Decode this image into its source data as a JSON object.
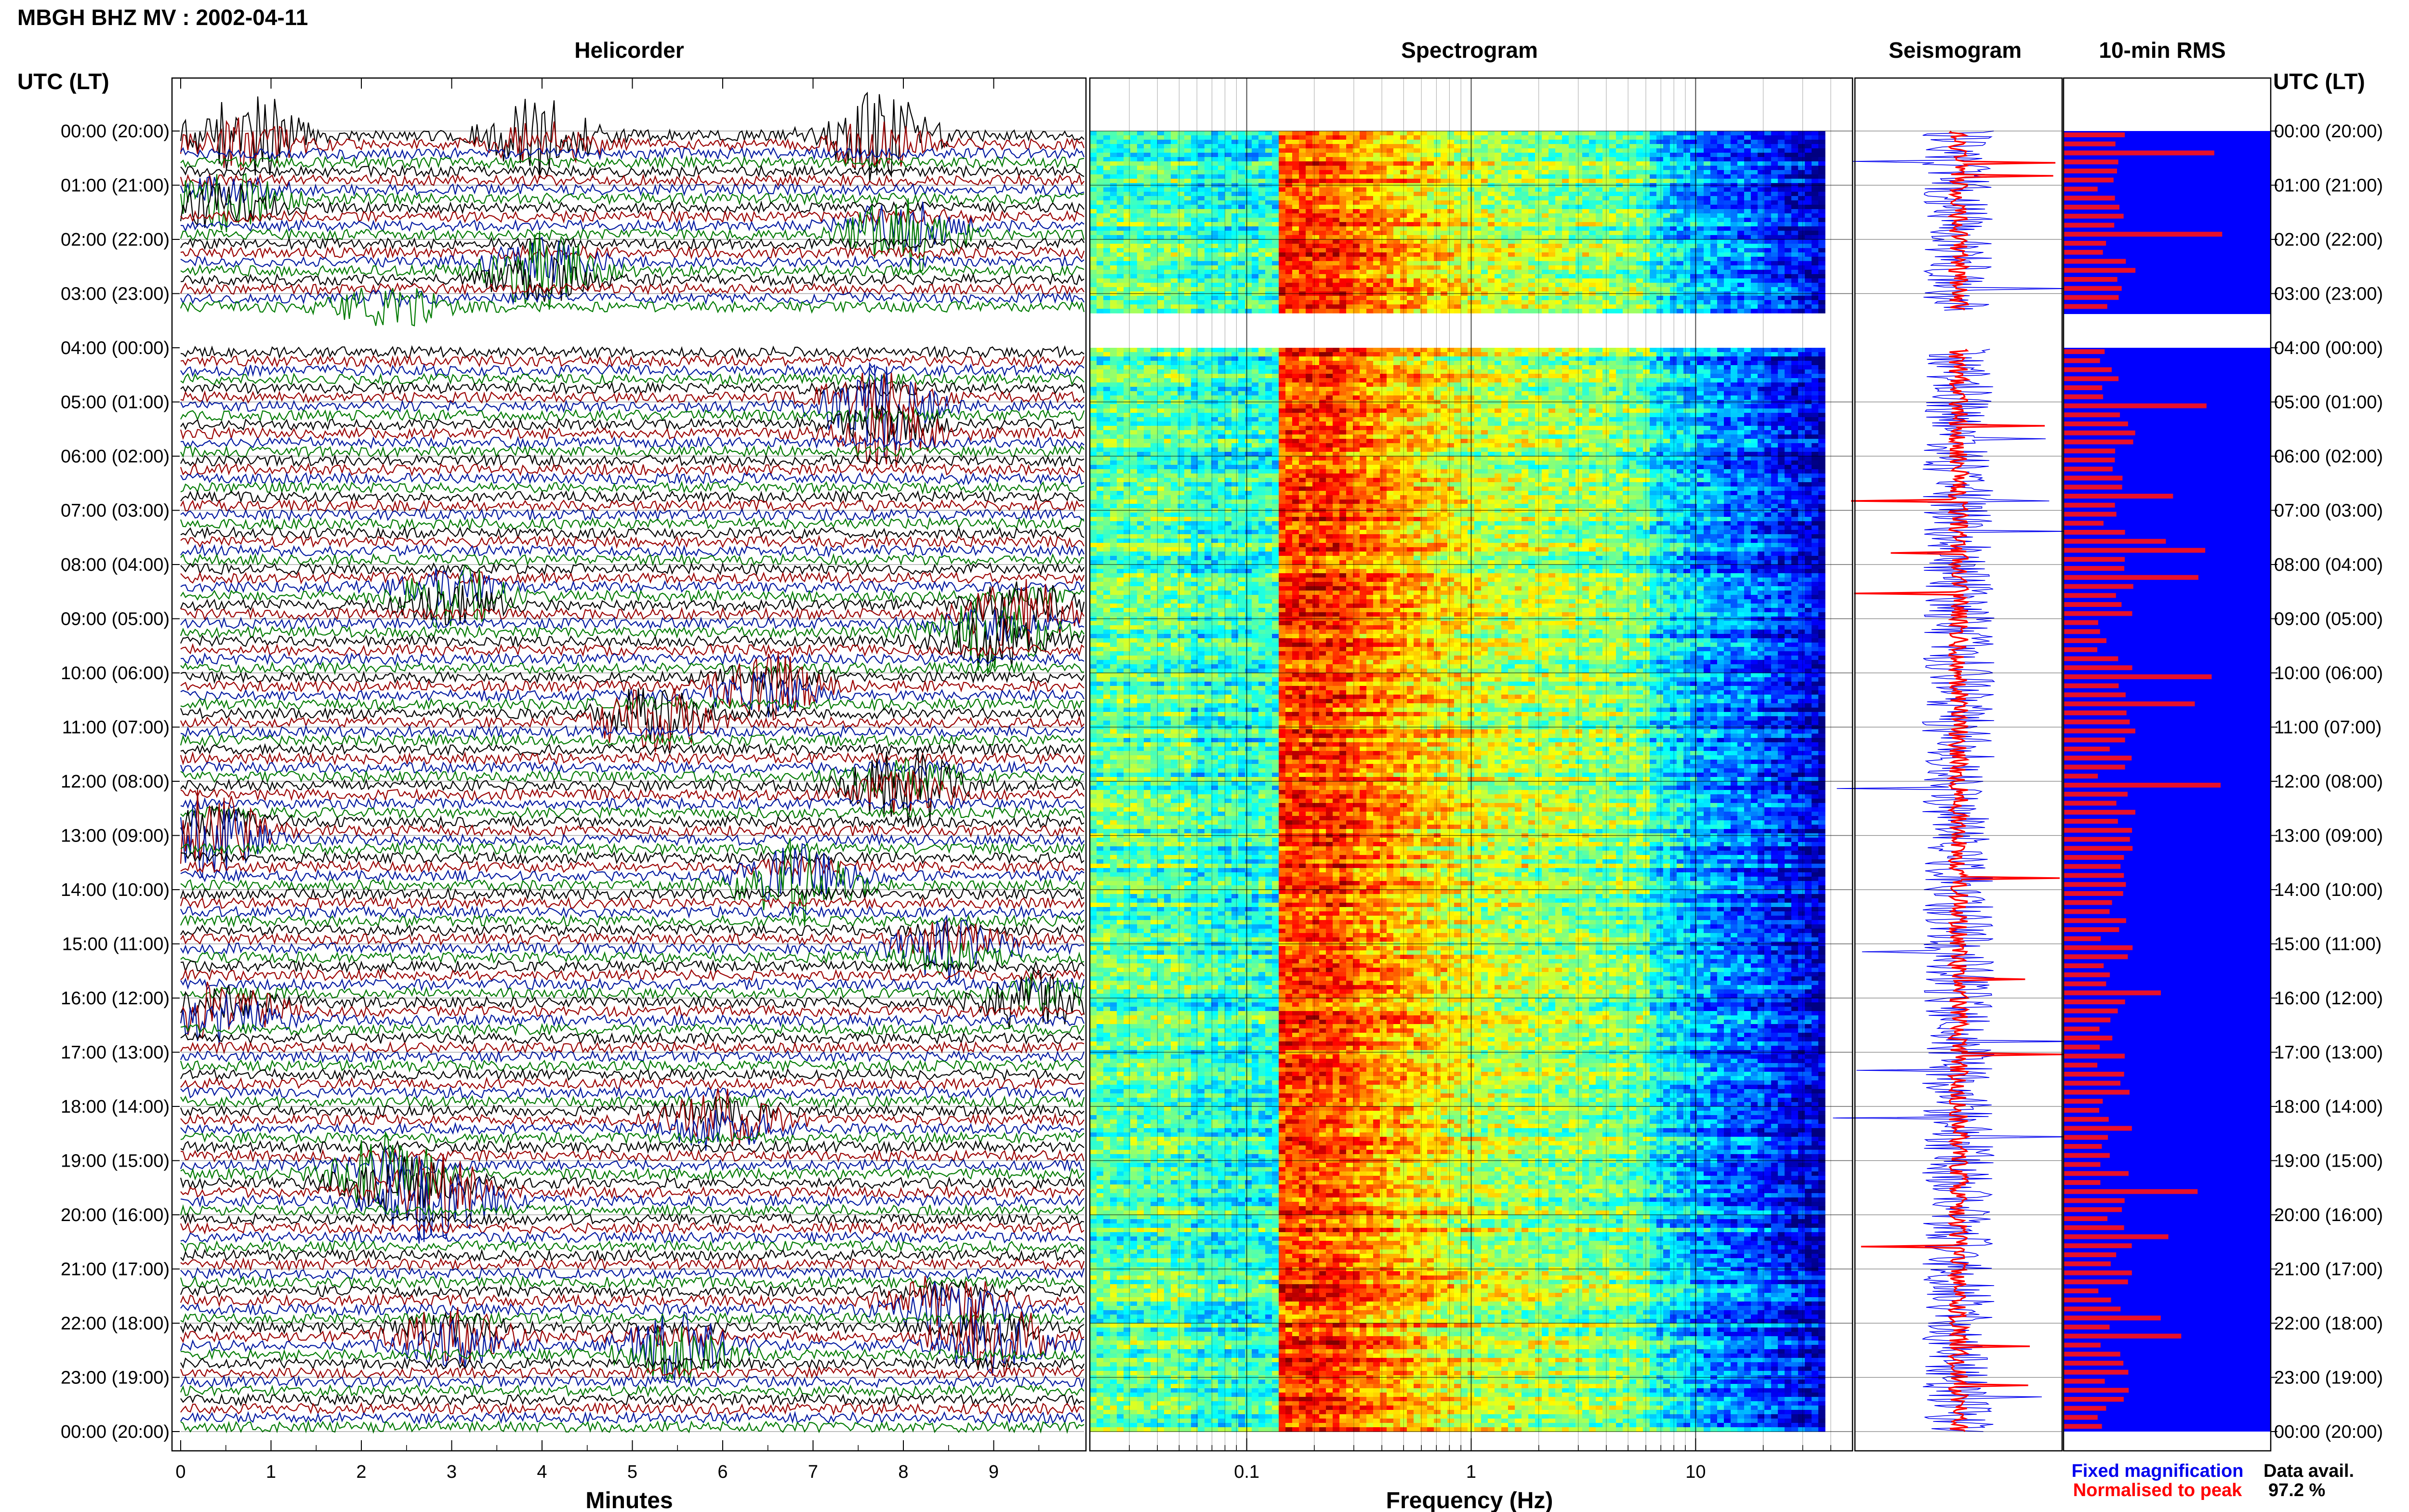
{
  "title": "MBGH BHZ MV : 2002-04-11",
  "panels": {
    "helicorder": "Helicorder",
    "spectrogram": "Spectrogram",
    "seismogram": "Seismogram",
    "rms": "10-min RMS"
  },
  "time_axis_label": "UTC (LT)",
  "time_labels": [
    "00:00 (20:00)",
    "01:00 (21:00)",
    "02:00 (22:00)",
    "03:00 (23:00)",
    "04:00 (00:00)",
    "05:00 (01:00)",
    "06:00 (02:00)",
    "07:00 (03:00)",
    "08:00 (04:00)",
    "09:00 (05:00)",
    "10:00 (06:00)",
    "11:00 (07:00)",
    "12:00 (08:00)",
    "13:00 (09:00)",
    "14:00 (10:00)",
    "15:00 (11:00)",
    "16:00 (12:00)",
    "17:00 (13:00)",
    "18:00 (14:00)",
    "19:00 (15:00)",
    "20:00 (16:00)",
    "21:00 (17:00)",
    "22:00 (18:00)",
    "23:00 (19:00)",
    "00:00 (20:00)"
  ],
  "helicorder_xlabel": "Minutes",
  "minute_ticks": [
    "0",
    "1",
    "2",
    "3",
    "4",
    "5",
    "6",
    "7",
    "8",
    "9"
  ],
  "spectrogram_xlabel": "Frequency (Hz)",
  "frequency_ticks": [
    "0.1",
    "1",
    "10"
  ],
  "legend": {
    "fixed": "Fixed magnification",
    "normalised": "Normalised to peak",
    "fixed_color": "#0000ee",
    "normalised_color": "#ff0000"
  },
  "data_avail": {
    "label": "Data avail.",
    "value": "97.2 %"
  },
  "colors": {
    "trace_cycle": [
      "#000000",
      "#9a0000",
      "#0018a0",
      "#007a00"
    ],
    "rms_fill": "#0000ff",
    "rms_bar": "#e8102a"
  },
  "chart_data": [
    {
      "type": "line",
      "name": "helicorder",
      "x_unit": "minutes",
      "xlim": [
        0,
        10
      ],
      "rows_per_hour": 6,
      "hours": 24,
      "gap_hours": [
        [
          3.333,
          4.0
        ]
      ],
      "events": [
        {
          "hour": 0.0,
          "minute": 0.7,
          "amplitude": 3.0
        },
        {
          "hour": 0.0,
          "minute": 4.0,
          "amplitude": 2.5
        },
        {
          "hour": 0.0,
          "minute": 7.7,
          "amplitude": 2.8
        },
        {
          "hour": 1.2,
          "minute": 0.5,
          "amplitude": 2.0
        },
        {
          "hour": 1.8,
          "minute": 8.0,
          "amplitude": 2.5
        },
        {
          "hour": 2.5,
          "minute": 4.0,
          "amplitude": 2.5
        },
        {
          "hour": 3.3,
          "minute": 2.3,
          "amplitude": 2.0
        },
        {
          "hour": 5.0,
          "minute": 7.7,
          "amplitude": 3.0
        },
        {
          "hour": 5.5,
          "minute": 7.8,
          "amplitude": 2.0
        },
        {
          "hour": 8.5,
          "minute": 3.0,
          "amplitude": 2.0
        },
        {
          "hour": 8.8,
          "minute": 9.3,
          "amplitude": 2.2
        },
        {
          "hour": 9.2,
          "minute": 9.0,
          "amplitude": 2.5
        },
        {
          "hour": 10.2,
          "minute": 6.5,
          "amplitude": 2.0
        },
        {
          "hour": 10.8,
          "minute": 5.2,
          "amplitude": 2.5
        },
        {
          "hour": 12.0,
          "minute": 8.0,
          "amplitude": 2.5
        },
        {
          "hour": 12.9,
          "minute": 0.3,
          "amplitude": 3.0
        },
        {
          "hour": 13.8,
          "minute": 6.8,
          "amplitude": 2.8
        },
        {
          "hour": 15.0,
          "minute": 8.5,
          "amplitude": 2.0
        },
        {
          "hour": 16.0,
          "minute": 9.5,
          "amplitude": 2.2
        },
        {
          "hour": 16.2,
          "minute": 0.5,
          "amplitude": 2.2
        },
        {
          "hour": 18.2,
          "minute": 6.0,
          "amplitude": 2.0
        },
        {
          "hour": 19.2,
          "minute": 2.3,
          "amplitude": 2.6
        },
        {
          "hour": 19.6,
          "minute": 2.8,
          "amplitude": 3.2
        },
        {
          "hour": 21.6,
          "minute": 8.5,
          "amplitude": 2.0
        },
        {
          "hour": 22.2,
          "minute": 9.0,
          "amplitude": 2.5
        },
        {
          "hour": 22.4,
          "minute": 5.5,
          "amplitude": 2.2
        },
        {
          "hour": 22.2,
          "minute": 3.0,
          "amplitude": 2.0
        }
      ]
    },
    {
      "type": "heatmap",
      "name": "spectrogram",
      "x_scale": "log",
      "xlim_hz": [
        0.02,
        50
      ],
      "y_unit": "hours UTC",
      "ylim": [
        0,
        24
      ],
      "gap_hours": [
        [
          3.333,
          4.0
        ]
      ]
    },
    {
      "type": "line",
      "name": "seismogram",
      "series": [
        {
          "name": "Fixed magnification",
          "color": "#0000ee"
        },
        {
          "name": "Normalised to peak",
          "color": "#ff0000"
        }
      ],
      "ylim": [
        0,
        24
      ]
    },
    {
      "type": "bar",
      "name": "10-min RMS",
      "orientation": "horizontal",
      "bins_per_hour": 6,
      "ylim": [
        0,
        24
      ],
      "gap_hours": [
        [
          3.333,
          4.0
        ]
      ]
    }
  ]
}
